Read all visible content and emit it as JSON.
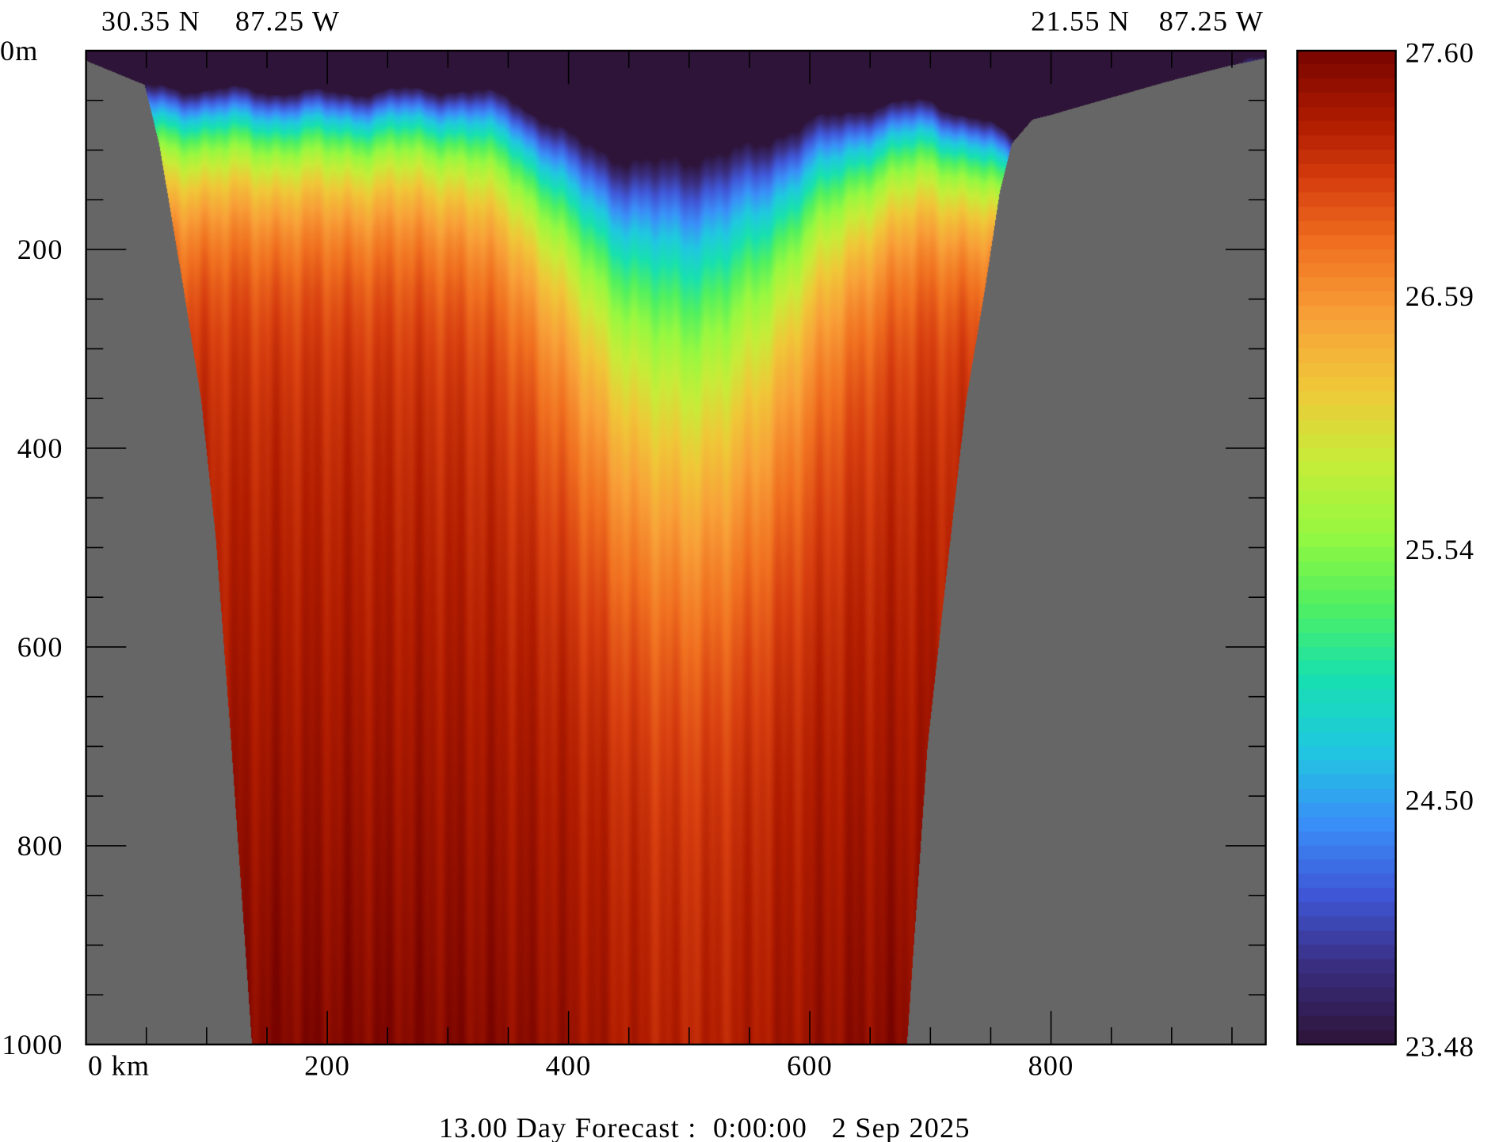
{
  "chart_data": {
    "type": "heatmap",
    "title": "13.00 Day Forecast :  0:00:00   2 Sep 2025",
    "variable": "temperature",
    "section_start": {
      "lat": "30.35 N",
      "lon": "87.25 W"
    },
    "section_end": {
      "lat": "21.55 N",
      "lon": "87.25 W"
    },
    "xlabel": "km",
    "ylabel": "m",
    "xlim": [
      0,
      978
    ],
    "ylim": [
      1000,
      0
    ],
    "x_ticks": [
      0,
      200,
      400,
      600,
      800
    ],
    "x_tick_labels": [
      "0 km",
      "200",
      "400",
      "600",
      "800"
    ],
    "x_minor_step": 50,
    "y_ticks": [
      0,
      200,
      400,
      600,
      800,
      1000
    ],
    "y_tick_labels": [
      "0m",
      "200",
      "400",
      "600",
      "800",
      "1000"
    ],
    "y_minor_step": 50,
    "colorbar": {
      "min": 23.48,
      "max": 27.6,
      "tick_values": [
        27.6,
        26.59,
        25.54,
        24.5,
        23.48
      ],
      "tick_labels": [
        "27.60",
        "26.59",
        "25.54",
        "24.50",
        "23.48"
      ],
      "stops": [
        [
          23.48,
          "#2e1438"
        ],
        [
          23.8,
          "#3a2e80"
        ],
        [
          24.1,
          "#4058d8"
        ],
        [
          24.4,
          "#3a90f8"
        ],
        [
          24.7,
          "#20c8e0"
        ],
        [
          25.0,
          "#18e0b0"
        ],
        [
          25.3,
          "#50f060"
        ],
        [
          25.6,
          "#98f840"
        ],
        [
          25.9,
          "#c8ec38"
        ],
        [
          26.2,
          "#f0c838"
        ],
        [
          26.5,
          "#f8a038"
        ],
        [
          26.8,
          "#f07020"
        ],
        [
          27.05,
          "#d84010"
        ],
        [
          27.3,
          "#b01c00"
        ],
        [
          27.6,
          "#780400"
        ]
      ]
    },
    "bathymetry": {
      "km": [
        0,
        48,
        60,
        80,
        95,
        107,
        119,
        137,
        680,
        697,
        713,
        729,
        745,
        757,
        767,
        784,
        800,
        840,
        895,
        943,
        978
      ],
      "depth_m": [
        10,
        34,
        93,
        237,
        352,
        490,
        683,
        1000,
        1000,
        700,
        524,
        352,
        237,
        141,
        93,
        69,
        64,
        50,
        31,
        16,
        7
      ]
    },
    "thermocline_top": {
      "km": [
        0,
        100,
        200,
        300,
        350,
        400,
        450,
        500,
        550,
        600,
        650,
        700,
        750,
        780,
        850,
        978
      ],
      "depth_m": [
        35,
        38,
        42,
        38,
        45,
        85,
        110,
        105,
        95,
        70,
        55,
        50,
        75,
        95,
        55,
        5
      ]
    },
    "land_color": "#666666",
    "mixed_layer_color": "#2e1438"
  }
}
